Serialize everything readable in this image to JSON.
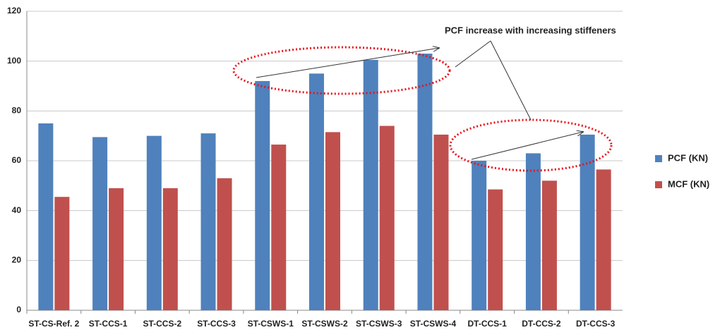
{
  "chart_data": {
    "type": "bar",
    "categories": [
      "ST-CS-Ref. 2",
      "ST-CCS-1",
      "ST-CCS-2",
      "ST-CCS-3",
      "ST-CSWS-1",
      "ST-CSWS-2",
      "ST-CSWS-3",
      "ST-CSWS-4",
      "DT-CCS-1",
      "DT-CCS-2",
      "DT-CCS-3"
    ],
    "series": [
      {
        "name": "PCF (KN)",
        "color": "#4f81bd",
        "values": [
          75,
          69.5,
          70,
          71,
          92,
          95,
          100.5,
          103,
          60,
          63,
          70.5
        ]
      },
      {
        "name": "MCF (KN)",
        "color": "#c0504d",
        "values": [
          45.5,
          49,
          49,
          53,
          66.5,
          71.5,
          74,
          70.5,
          48.5,
          52,
          56.5
        ]
      }
    ],
    "ylim": [
      0,
      120
    ],
    "yticks": [
      0,
      20,
      40,
      60,
      80,
      100,
      120
    ],
    "grid": true,
    "legend": "right",
    "annotation": "PCF increase with increasing stiffeners"
  }
}
